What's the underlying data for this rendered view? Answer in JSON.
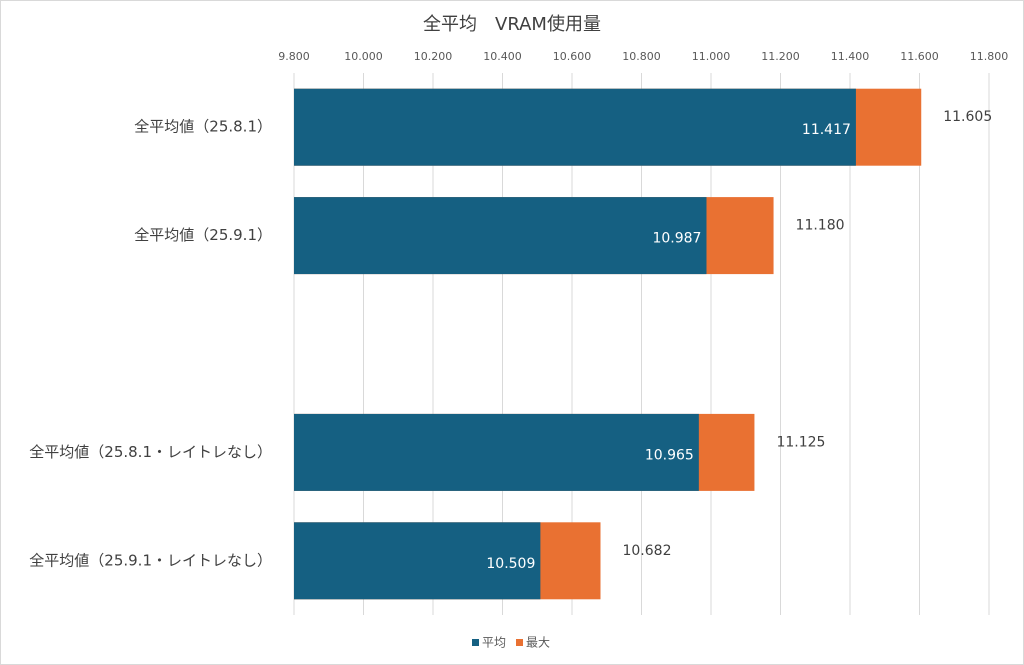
{
  "chart_data": {
    "type": "bar",
    "orientation": "horizontal",
    "overlap": true,
    "title": "全平均　VRAM使用量",
    "categories": [
      "全平均値（25.8.1）",
      "全平均値（25.9.1）",
      null,
      "全平均値（25.8.1・レイトレなし）",
      "全平均値（25.9.1・レイトレなし）"
    ],
    "series": [
      {
        "name": "最大",
        "color": "#e97132",
        "values": [
          11.605,
          11.18,
          null,
          11.125,
          10.682
        ],
        "value_labels": [
          "11.605",
          "11.180",
          null,
          "11.125",
          "10.682"
        ]
      },
      {
        "name": "平均",
        "color": "#156082",
        "values": [
          11.417,
          10.987,
          null,
          10.965,
          10.509
        ],
        "value_labels": [
          "11.417",
          "10.987",
          null,
          "10.965",
          "10.509"
        ]
      }
    ],
    "legend_order": [
      "平均",
      "最大"
    ],
    "xlim": [
      9.8,
      11.8
    ],
    "xticks": [
      {
        "value": 9.8,
        "label": "9.800"
      },
      {
        "value": 10.0,
        "label": "10.000"
      },
      {
        "value": 10.2,
        "label": "10.200"
      },
      {
        "value": 10.4,
        "label": "10.400"
      },
      {
        "value": 10.6,
        "label": "10.600"
      },
      {
        "value": 10.8,
        "label": "10.800"
      },
      {
        "value": 11.0,
        "label": "11.000"
      },
      {
        "value": 11.2,
        "label": "11.200"
      },
      {
        "value": 11.4,
        "label": "11.400"
      },
      {
        "value": 11.6,
        "label": "11.600"
      },
      {
        "value": 11.8,
        "label": "11.800"
      }
    ],
    "grid": true,
    "legend": "bottom"
  }
}
